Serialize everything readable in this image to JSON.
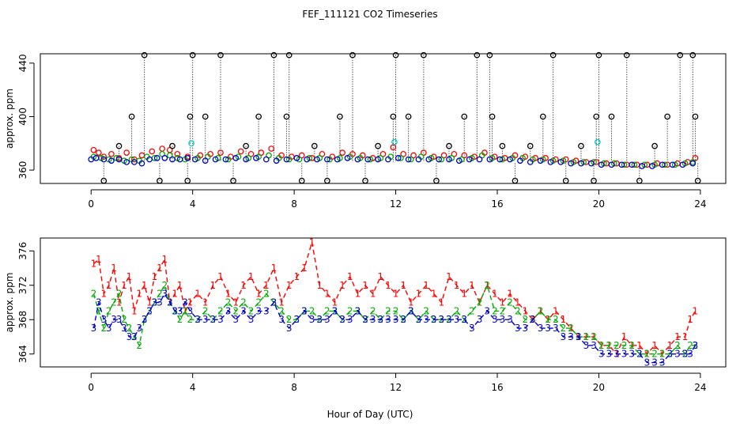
{
  "title": "FEF_111121  CO2 Timeseries",
  "xlabel": "Hour of Day (UTC)",
  "chart_data": [
    {
      "type": "scatter",
      "ylabel": "approx. ppm",
      "xlim": [
        -2,
        25
      ],
      "ylim": [
        350,
        447
      ],
      "xticks": [
        0,
        4,
        8,
        12,
        16,
        20,
        24
      ],
      "yticks": [
        360,
        400,
        440
      ],
      "series": [
        {
          "name": "red",
          "color": "#ff0000",
          "marker": "o",
          "x": [
            0.1,
            0.3,
            0.5,
            0.8,
            1.1,
            1.4,
            1.7,
            2.0,
            2.4,
            2.8,
            3.1,
            3.4,
            3.8,
            4.3,
            4.7,
            5.1,
            5.5,
            5.9,
            6.3,
            6.7,
            7.1,
            7.5,
            7.9,
            8.3,
            8.7,
            9.1,
            9.5,
            9.9,
            10.3,
            10.7,
            11.1,
            11.5,
            11.9,
            12.3,
            12.7,
            13.1,
            13.5,
            13.9,
            14.3,
            14.7,
            15.1,
            15.5,
            15.9,
            16.3,
            16.7,
            17.1,
            17.5,
            17.9,
            18.3,
            18.7,
            19.1,
            19.5,
            19.9,
            20.3,
            20.7,
            21.1,
            21.5,
            21.9,
            22.3,
            22.7,
            23.1,
            23.5,
            23.8
          ],
          "y": [
            375,
            373,
            370,
            372,
            369,
            373,
            368,
            371,
            374,
            376,
            375,
            372,
            370,
            371,
            372,
            373,
            370,
            374,
            372,
            373,
            376,
            371,
            370,
            371,
            369,
            372,
            370,
            373,
            372,
            371,
            369,
            372,
            377,
            372,
            371,
            373,
            370,
            371,
            372,
            371,
            370,
            373,
            370,
            369,
            371,
            370,
            369,
            369,
            368,
            368,
            367,
            366,
            366,
            365,
            365,
            364,
            364,
            364,
            365,
            364,
            365,
            366,
            369
          ]
        },
        {
          "name": "green",
          "color": "#00aa00",
          "marker": "o",
          "x": [
            0.1,
            0.4,
            0.7,
            1.0,
            1.3,
            1.6,
            1.9,
            2.2,
            2.5,
            2.8,
            3.1,
            3.4,
            3.7,
            4.2,
            4.6,
            5.0,
            5.4,
            5.8,
            6.2,
            6.6,
            7.0,
            7.4,
            7.8,
            8.2,
            8.6,
            9.0,
            9.4,
            9.8,
            10.2,
            10.6,
            11.0,
            11.4,
            11.8,
            12.2,
            12.6,
            13.0,
            13.4,
            13.8,
            14.2,
            14.6,
            15.0,
            15.4,
            15.8,
            16.2,
            16.6,
            17.0,
            17.4,
            17.8,
            18.2,
            18.6,
            19.0,
            19.4,
            19.8,
            20.2,
            20.6,
            21.0,
            21.4,
            21.8,
            22.2,
            22.6,
            23.0,
            23.4,
            23.7
          ],
          "y": [
            370,
            369,
            368,
            369,
            367,
            368,
            367,
            370,
            369,
            372,
            371,
            369,
            368,
            369,
            370,
            369,
            368,
            370,
            369,
            370,
            371,
            369,
            368,
            368,
            369,
            369,
            368,
            369,
            370,
            369,
            368,
            369,
            370,
            369,
            368,
            370,
            369,
            368,
            369,
            368,
            369,
            371,
            369,
            368,
            369,
            369,
            368,
            368,
            367,
            367,
            366,
            366,
            366,
            365,
            365,
            364,
            364,
            364,
            364,
            364,
            364,
            365,
            366
          ]
        },
        {
          "name": "blue",
          "color": "#0000cc",
          "marker": "o",
          "x": [
            0.0,
            0.2,
            0.5,
            0.8,
            1.1,
            1.4,
            1.7,
            2.0,
            2.3,
            2.6,
            2.9,
            3.2,
            3.5,
            3.8,
            4.1,
            4.5,
            4.9,
            5.3,
            5.7,
            6.1,
            6.5,
            6.9,
            7.3,
            7.7,
            8.1,
            8.5,
            8.9,
            9.3,
            9.7,
            10.1,
            10.5,
            10.9,
            11.3,
            11.7,
            12.1,
            12.5,
            12.9,
            13.3,
            13.7,
            14.1,
            14.5,
            14.9,
            15.3,
            15.7,
            16.1,
            16.5,
            16.9,
            17.3,
            17.7,
            18.1,
            18.5,
            18.9,
            19.3,
            19.7,
            20.1,
            20.5,
            20.9,
            21.3,
            21.7,
            22.1,
            22.5,
            22.9,
            23.3,
            23.7
          ],
          "y": [
            368,
            369,
            368,
            367,
            368,
            366,
            366,
            365,
            368,
            369,
            369,
            368,
            368,
            369,
            368,
            367,
            368,
            368,
            369,
            368,
            369,
            368,
            367,
            368,
            369,
            368,
            368,
            368,
            368,
            369,
            368,
            368,
            368,
            368,
            369,
            368,
            368,
            368,
            368,
            368,
            367,
            368,
            368,
            368,
            368,
            368,
            367,
            366,
            367,
            366,
            366,
            365,
            365,
            365,
            364,
            364,
            364,
            364,
            363,
            363,
            364,
            364,
            364,
            365
          ]
        },
        {
          "name": "cyan",
          "color": "#00cccc",
          "marker": "o",
          "x": [
            3.95,
            11.95,
            19.95
          ],
          "y": [
            380,
            381,
            381
          ]
        },
        {
          "name": "black",
          "color": "#000000",
          "marker": "o",
          "x": [
            0.5,
            1.1,
            1.6,
            2.1,
            2.7,
            3.2,
            3.8,
            3.9,
            4.0,
            4.5,
            5.1,
            5.6,
            6.1,
            6.6,
            7.2,
            7.7,
            7.8,
            8.3,
            8.8,
            9.3,
            9.8,
            10.3,
            10.8,
            11.3,
            11.9,
            12.0,
            12.5,
            13.1,
            13.6,
            14.1,
            14.7,
            15.2,
            15.7,
            15.8,
            16.2,
            16.7,
            17.3,
            17.8,
            18.2,
            18.7,
            19.3,
            19.8,
            19.9,
            20.0,
            20.5,
            21.1,
            21.6,
            22.2,
            22.7,
            23.2,
            23.7,
            23.8,
            23.9
          ],
          "y": [
            352,
            378,
            400,
            446,
            352,
            378,
            352,
            400,
            446,
            400,
            446,
            352,
            378,
            400,
            446,
            400,
            446,
            352,
            378,
            352,
            400,
            446,
            352,
            378,
            400,
            446,
            400,
            446,
            352,
            378,
            400,
            446,
            446,
            400,
            378,
            352,
            378,
            400,
            446,
            352,
            378,
            352,
            400,
            446,
            400,
            446,
            352,
            378,
            400,
            446,
            446,
            400,
            352
          ]
        }
      ]
    },
    {
      "type": "line",
      "ylabel": "approx. ppm",
      "xlim": [
        -2,
        25
      ],
      "ylim": [
        362.5,
        377.5
      ],
      "xticks": [
        0,
        4,
        8,
        12,
        16,
        20,
        24
      ],
      "yticks": [
        364,
        368,
        372,
        376
      ],
      "series": [
        {
          "name": "1",
          "color": "#ff0000",
          "symbol": "1",
          "x": [
            0.1,
            0.3,
            0.5,
            0.7,
            0.9,
            1.1,
            1.3,
            1.5,
            1.7,
            1.9,
            2.1,
            2.3,
            2.5,
            2.7,
            2.9,
            3.1,
            3.3,
            3.5,
            3.7,
            3.9,
            4.2,
            4.5,
            4.8,
            5.1,
            5.4,
            5.7,
            6.0,
            6.3,
            6.6,
            6.9,
            7.2,
            7.5,
            7.8,
            8.1,
            8.4,
            8.7,
            9.0,
            9.3,
            9.6,
            9.9,
            10.2,
            10.5,
            10.8,
            11.1,
            11.4,
            11.7,
            12.0,
            12.3,
            12.6,
            12.9,
            13.2,
            13.5,
            13.8,
            14.1,
            14.4,
            14.7,
            15.0,
            15.3,
            15.6,
            15.9,
            16.2,
            16.5,
            16.8,
            17.1,
            17.4,
            17.7,
            18.0,
            18.3,
            18.6,
            18.9,
            19.2,
            19.5,
            19.8,
            20.1,
            20.4,
            20.7,
            21.0,
            21.3,
            21.6,
            21.9,
            22.2,
            22.5,
            22.8,
            23.1,
            23.4,
            23.6,
            23.8
          ],
          "y": [
            374.5,
            375,
            371,
            372,
            374,
            370,
            372,
            373,
            369,
            371,
            372,
            370,
            373,
            374,
            375,
            370,
            371,
            372,
            369,
            370,
            371,
            370,
            372,
            373,
            371,
            370,
            372,
            373,
            371,
            372,
            374,
            370,
            372,
            373,
            374,
            377,
            372,
            371,
            370,
            372,
            373,
            371,
            372,
            371,
            373,
            372,
            371,
            372,
            370,
            371,
            372,
            371,
            370,
            373,
            372,
            371,
            372,
            370,
            372,
            371,
            370,
            371,
            370,
            369,
            368,
            369,
            368,
            369,
            368,
            367,
            366,
            366,
            366,
            365,
            365,
            364,
            366,
            365,
            365,
            364,
            365,
            364,
            365,
            366,
            366,
            368,
            369
          ]
        },
        {
          "name": "2",
          "color": "#00aa00",
          "symbol": "2",
          "x": [
            0.1,
            0.3,
            0.5,
            0.7,
            0.9,
            1.1,
            1.3,
            1.5,
            1.7,
            1.9,
            2.1,
            2.3,
            2.5,
            2.7,
            2.9,
            3.1,
            3.3,
            3.5,
            3.7,
            3.9,
            4.2,
            4.5,
            4.8,
            5.1,
            5.4,
            5.7,
            6.0,
            6.3,
            6.6,
            6.9,
            7.2,
            7.5,
            7.8,
            8.1,
            8.4,
            8.7,
            9.0,
            9.3,
            9.6,
            9.9,
            10.2,
            10.5,
            10.8,
            11.1,
            11.4,
            11.7,
            12.0,
            12.3,
            12.6,
            12.9,
            13.2,
            13.5,
            13.8,
            14.1,
            14.4,
            14.7,
            15.0,
            15.3,
            15.6,
            15.9,
            16.2,
            16.5,
            16.8,
            17.1,
            17.4,
            17.7,
            18.0,
            18.3,
            18.6,
            18.9,
            19.2,
            19.5,
            19.8,
            20.1,
            20.4,
            20.7,
            21.0,
            21.3,
            21.6,
            21.9,
            22.2,
            22.5,
            22.8,
            23.1,
            23.4,
            23.6,
            23.8
          ],
          "y": [
            371,
            369,
            367,
            369,
            370,
            371,
            368,
            367,
            366,
            365,
            368,
            369,
            370,
            371,
            372,
            370,
            369,
            368,
            369,
            368,
            368,
            369,
            368,
            369,
            370,
            369,
            370,
            369,
            370,
            371,
            370,
            369,
            368,
            368,
            369,
            369,
            368,
            369,
            369,
            368,
            369,
            369,
            368,
            369,
            368,
            369,
            369,
            368,
            369,
            368,
            369,
            368,
            368,
            368,
            369,
            368,
            369,
            370,
            372,
            369,
            369,
            370,
            369,
            368,
            368,
            369,
            368,
            368,
            367,
            367,
            366,
            366,
            366,
            365,
            365,
            365,
            365,
            365,
            364,
            364,
            364,
            364,
            364,
            365,
            364,
            365,
            365
          ]
        },
        {
          "name": "3",
          "color": "#0000cc",
          "symbol": "3",
          "x": [
            0.1,
            0.3,
            0.5,
            0.7,
            0.9,
            1.1,
            1.3,
            1.5,
            1.7,
            1.9,
            2.1,
            2.3,
            2.5,
            2.7,
            2.9,
            3.1,
            3.3,
            3.5,
            3.7,
            3.9,
            4.2,
            4.5,
            4.8,
            5.1,
            5.4,
            5.7,
            6.0,
            6.3,
            6.6,
            6.9,
            7.2,
            7.5,
            7.8,
            8.1,
            8.4,
            8.7,
            9.0,
            9.3,
            9.6,
            9.9,
            10.2,
            10.5,
            10.8,
            11.1,
            11.4,
            11.7,
            12.0,
            12.3,
            12.6,
            12.9,
            13.2,
            13.5,
            13.8,
            14.1,
            14.4,
            14.7,
            15.0,
            15.3,
            15.6,
            15.9,
            16.2,
            16.5,
            16.8,
            17.1,
            17.4,
            17.7,
            18.0,
            18.3,
            18.6,
            18.9,
            19.2,
            19.5,
            19.8,
            20.1,
            20.4,
            20.7,
            21.0,
            21.3,
            21.6,
            21.9,
            22.2,
            22.5,
            22.8,
            23.1,
            23.4,
            23.6,
            23.8
          ],
          "y": [
            367,
            370,
            368,
            367,
            368,
            368,
            367,
            366,
            366,
            367,
            368,
            369,
            370,
            370,
            371,
            370,
            369,
            369,
            370,
            369,
            368,
            368,
            368,
            368,
            369,
            368,
            369,
            368,
            369,
            369,
            370,
            368,
            367,
            368,
            369,
            368,
            368,
            368,
            369,
            368,
            368,
            369,
            368,
            368,
            368,
            368,
            368,
            368,
            369,
            368,
            368,
            368,
            368,
            368,
            368,
            368,
            367,
            368,
            369,
            368,
            368,
            368,
            367,
            367,
            368,
            367,
            367,
            367,
            366,
            366,
            366,
            365,
            365,
            364,
            364,
            364,
            364,
            364,
            364,
            363,
            363,
            363,
            364,
            364,
            364,
            364,
            365
          ]
        }
      ]
    }
  ]
}
